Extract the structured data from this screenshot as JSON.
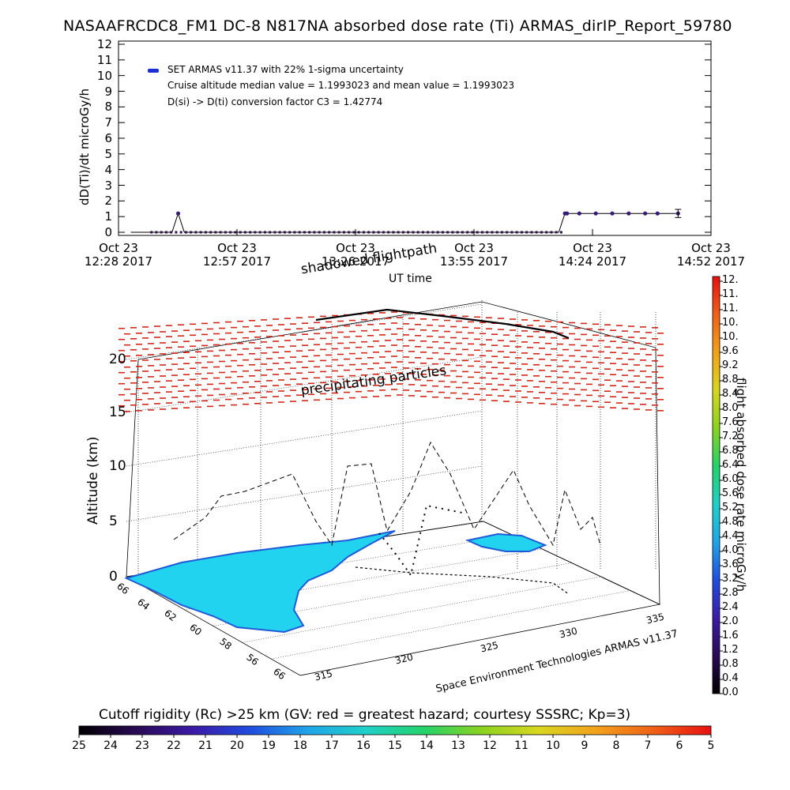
{
  "header": {
    "title": "NASAAFRCDC8_FM1 DC-8   N817NA absorbed dose rate (Ti) ARMAS_dirIP_Report_59780"
  },
  "chart_data": [
    {
      "type": "line",
      "title": "NASAAFRCDC8_FM1 DC-8   N817NA absorbed dose rate (Ti) ARMAS_dirIP_Report_59780",
      "ylabel": "dD(Ti)/dt microGy/h",
      "xlabel": "UT time",
      "ylim": [
        0,
        12
      ],
      "yticks": [
        "0",
        "1",
        "2",
        "3",
        "4",
        "5",
        "6",
        "7",
        "8",
        "9",
        "10",
        "11",
        "12"
      ],
      "xticks": [
        {
          "line1": "Oct 23",
          "line2": "12:28 2017"
        },
        {
          "line1": "Oct 23",
          "line2": "12:57 2017"
        },
        {
          "line1": "Oct 23",
          "line2": "13:26 2017"
        },
        {
          "line1": "Oct 23",
          "line2": "13:55 2017"
        },
        {
          "line1": "Oct 23",
          "line2": "14:24 2017"
        },
        {
          "line1": "Oct 23",
          "line2": "14:52 2017"
        }
      ],
      "xlim_minutes": [
        0,
        144
      ],
      "legend": [
        "SET ARMAS v11.37 with 22% 1-sigma uncertainty",
        "Cruise altitude median value = 1.1993023 and mean value = 1.1993023",
        "D(si) -> D(ti) conversion factor C3 = 1.42774"
      ],
      "legend_placement": "top-left",
      "series": [
        {
          "name": "SET ARMAS v11.37 with 22% 1-sigma uncertainty",
          "segments": [
            [
              [
                3,
                0
              ],
              [
                13,
                0
              ],
              [
                14.5,
                1.2
              ],
              [
                16,
                0
              ],
              [
                33,
                0
              ],
              [
                55,
                0
              ],
              [
                80,
                0
              ],
              [
                100,
                0
              ],
              [
                107,
                0
              ],
              [
                108.5,
                1.2
              ],
              [
                109,
                1.2
              ],
              [
                112,
                1.2
              ],
              [
                116,
                1.2
              ],
              [
                120,
                1.2
              ],
              [
                124,
                1.2
              ],
              [
                128,
                1.2
              ],
              [
                131,
                1.2
              ],
              [
                136,
                1.2
              ]
            ]
          ],
          "error_bar": {
            "x": 136,
            "y": 1.2,
            "sigma": 0.26
          }
        }
      ]
    },
    {
      "type": "3d-map",
      "zlabel": "Altitude (km)",
      "zticks": [
        "0",
        "5",
        "10",
        "15",
        "20"
      ],
      "lat_ticks": [
        "66",
        "64",
        "62",
        "60",
        "58",
        "56",
        "66"
      ],
      "lon_ticks": [
        "315",
        "320",
        "325",
        "330",
        "335"
      ],
      "annotations": [
        "shadowed flightpath",
        "precipitating particles",
        "Space Environment Technologies ARMAS v11.37"
      ]
    }
  ],
  "colorbar_right": {
    "label": "flight absorbed dose rate microGy/h",
    "ticks": [
      "0.0",
      "0.4",
      "0.8",
      "1.2",
      "1.6",
      "2.0",
      "2.4",
      "2.8",
      "3.2",
      "3.6",
      "4.0",
      "4.4",
      "4.8",
      "5.2",
      "5.6",
      "6.0",
      "6.4",
      "6.8",
      "7.2",
      "7.6",
      "8.0",
      "8.4",
      "8.8",
      "9.2",
      "9.6",
      "10.",
      "10.",
      "11.",
      "11.",
      "12."
    ]
  },
  "colorbar_bottom": {
    "title": "Cutoff rigidity (Rc) >25 km (GV: red = greatest hazard; courtesy SSSRC; Kp=3)",
    "ticks": [
      "25",
      "24",
      "23",
      "22",
      "21",
      "20",
      "19",
      "18",
      "17",
      "16",
      "15",
      "14",
      "13",
      "12",
      "11",
      "10",
      "9",
      "8",
      "7",
      "6",
      "5"
    ]
  },
  "colors": {
    "series": "#3a1a78",
    "legend_marker": "#1c2fd6",
    "particles": "#d4281c",
    "land": "#22d3ef",
    "land_edge": "#1f5bd6"
  }
}
